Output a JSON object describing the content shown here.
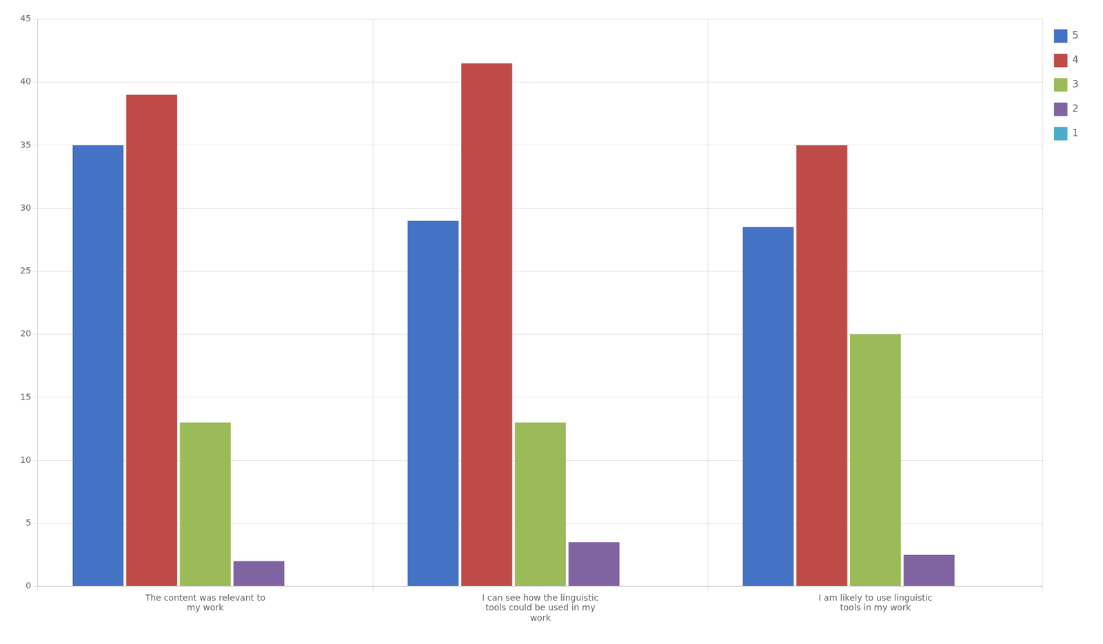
{
  "chart_data": {
    "type": "bar",
    "categories": [
      "The content was relevant to\nmy work",
      "I can see how the linguistic\ntools could be used in my\nwork",
      "I am likely to use linguistic\ntools in my work"
    ],
    "series": [
      {
        "name": "5",
        "color": "#4472C4",
        "values": [
          35,
          29,
          28.5
        ]
      },
      {
        "name": "4",
        "color": "#BE4B48",
        "values": [
          39,
          41.5,
          35
        ]
      },
      {
        "name": "3",
        "color": "#9BBB59",
        "values": [
          13,
          13,
          20
        ]
      },
      {
        "name": "2",
        "color": "#8064A2",
        "values": [
          2,
          3.5,
          2.5
        ]
      },
      {
        "name": "1",
        "color": "#4BACC6",
        "values": [
          0,
          0,
          0
        ]
      }
    ],
    "ylim": [
      0,
      45
    ],
    "yticks": [
      0,
      5,
      10,
      15,
      20,
      25,
      30,
      35,
      40,
      45
    ],
    "grid": true,
    "legend": "upper right"
  }
}
